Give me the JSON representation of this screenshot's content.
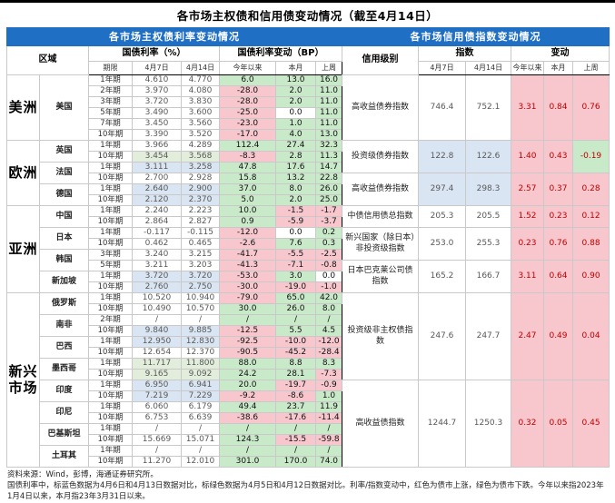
{
  "page_title": "各市场主权债和信用债变动情况（截至4月14日）",
  "colors": {
    "header_blue": "#1F6FC5",
    "up_green": "#C9EAC9",
    "down_pink": "#F7C7CD",
    "hl_blue": "#D9E5F2",
    "hl_green": "#E2EEDB",
    "right_text_red": "#C00000"
  },
  "left_panel": {
    "section_title": "各市场主权债利率变动情况",
    "col_region": "区域",
    "group_rate": "国债利率（%）",
    "group_change": "国债利率变动（BP）",
    "sub_tenor": "期限",
    "sub_date1": "4月7日",
    "sub_date2": "4月14日",
    "sub_ytd": "今年以来",
    "sub_month": "本月",
    "sub_week": "上周"
  },
  "right_panel": {
    "section_title": "各市场信用债指数变动情况",
    "col_level": "信用级别",
    "group_index": "指数",
    "group_change": "变动",
    "sub_date1": "4月7日",
    "sub_date2": "4月14日",
    "sub_ytd": "今年以来",
    "sub_month": "本月",
    "sub_week": "上周"
  },
  "regions": [
    {
      "name": "美洲",
      "countries": [
        {
          "name": "美国",
          "rows": [
            {
              "tenor": "1年期",
              "d1": "4.610",
              "d2": "4.770",
              "ytd": "6.0",
              "ytdC": "g",
              "m": "13.0",
              "mC": "g",
              "w": "16.0",
              "wC": "g",
              "hl": ""
            },
            {
              "tenor": "2年期",
              "d1": "3.970",
              "d2": "4.080",
              "ytd": "-28.0",
              "ytdC": "p",
              "m": "2.0",
              "mC": "g",
              "w": "11.0",
              "wC": "g",
              "hl": ""
            },
            {
              "tenor": "3年期",
              "d1": "3.720",
              "d2": "3.830",
              "ytd": "-28.0",
              "ytdC": "p",
              "m": "2.0",
              "mC": "g",
              "w": "11.0",
              "wC": "g",
              "hl": ""
            },
            {
              "tenor": "5年期",
              "d1": "3.490",
              "d2": "3.600",
              "ytd": "-25.0",
              "ytdC": "p",
              "m": "0.0",
              "mC": "",
              "w": "11.0",
              "wC": "g",
              "hl": ""
            },
            {
              "tenor": "7年期",
              "d1": "3.450",
              "d2": "3.560",
              "ytd": "-23.0",
              "ytdC": "p",
              "m": "1.0",
              "mC": "g",
              "w": "11.0",
              "wC": "g",
              "hl": ""
            },
            {
              "tenor": "10年期",
              "d1": "3.390",
              "d2": "3.520",
              "ytd": "-17.0",
              "ytdC": "p",
              "m": "4.0",
              "mC": "g",
              "w": "13.0",
              "wC": "g",
              "hl": ""
            }
          ]
        }
      ],
      "credit": [
        {
          "label": "高收益债券指数",
          "span": 6,
          "i1": "746.4",
          "i2": "752.1",
          "ytd": "3.31",
          "ytdC": "p",
          "m": "0.84",
          "mC": "p",
          "w": "0.76",
          "wC": "p",
          "hl": ""
        }
      ]
    },
    {
      "name": "欧洲",
      "countries": [
        {
          "name": "英国",
          "rows": [
            {
              "tenor": "1年期",
              "d1": "3.966",
              "d2": "4.289",
              "ytd": "112.4",
              "ytdC": "g",
              "m": "27.4",
              "mC": "g",
              "w": "32.3",
              "wC": "g",
              "hl": ""
            },
            {
              "tenor": "10年期",
              "d1": "3.454",
              "d2": "3.568",
              "ytd": "-8.3",
              "ytdC": "p",
              "m": "2.8",
              "mC": "g",
              "w": "11.3",
              "wC": "g",
              "hl": "green"
            }
          ]
        },
        {
          "name": "法国",
          "rows": [
            {
              "tenor": "1年期",
              "d1": "3.111",
              "d2": "3.258",
              "ytd": "47.8",
              "ytdC": "g",
              "m": "17.6",
              "mC": "g",
              "w": "14.7",
              "wC": "g",
              "hl": "blue"
            },
            {
              "tenor": "10年期",
              "d1": "2.700",
              "d2": "2.928",
              "ytd": "15.8",
              "ytdC": "g",
              "m": "13.2",
              "mC": "g",
              "w": "22.8",
              "wC": "g",
              "hl": ""
            }
          ]
        },
        {
          "name": "德国",
          "rows": [
            {
              "tenor": "1年期",
              "d1": "2.640",
              "d2": "2.900",
              "ytd": "37.0",
              "ytdC": "g",
              "m": "8.0",
              "mC": "g",
              "w": "26.0",
              "wC": "g",
              "hl": "blue"
            },
            {
              "tenor": "10年期",
              "d1": "2.120",
              "d2": "2.370",
              "ytd": "5.0",
              "ytdC": "g",
              "m": "2.0",
              "mC": "g",
              "w": "25.0",
              "wC": "g",
              "hl": "blue"
            }
          ]
        }
      ],
      "credit": [
        {
          "label": "投资级债券指数",
          "span": 3,
          "i1": "122.8",
          "i2": "122.6",
          "ytd": "1.40",
          "ytdC": "p",
          "m": "0.43",
          "mC": "p",
          "w": "-0.19",
          "wC": "g",
          "hl": "blue"
        },
        {
          "label": "高收益债券指数",
          "span": 3,
          "i1": "297.4",
          "i2": "298.3",
          "ytd": "2.57",
          "ytdC": "p",
          "m": "0.37",
          "mC": "p",
          "w": "0.28",
          "wC": "p",
          "hl": "blue"
        }
      ]
    },
    {
      "name": "亚洲",
      "countries": [
        {
          "name": "中国",
          "rows": [
            {
              "tenor": "1年期",
              "d1": "2.240",
              "d2": "2.223",
              "ytd": "10.0",
              "ytdC": "g",
              "m": "-1.5",
              "mC": "p",
              "w": "-1.7",
              "wC": "p",
              "hl": ""
            },
            {
              "tenor": "10年期",
              "d1": "2.864",
              "d2": "2.827",
              "ytd": "0.9",
              "ytdC": "g",
              "m": "-5.9",
              "mC": "p",
              "w": "-3.7",
              "wC": "p",
              "hl": ""
            }
          ]
        },
        {
          "name": "日本",
          "rows": [
            {
              "tenor": "1年期",
              "d1": "-0.117",
              "d2": "-0.115",
              "ytd": "-12.0",
              "ytdC": "p",
              "m": "0.0",
              "mC": "",
              "w": "0.2",
              "wC": "g",
              "hl": ""
            },
            {
              "tenor": "10年期",
              "d1": "0.462",
              "d2": "0.465",
              "ytd": "-2.6",
              "ytdC": "p",
              "m": "7.6",
              "mC": "g",
              "w": "0.3",
              "wC": "g",
              "hl": ""
            }
          ]
        },
        {
          "name": "韩国",
          "rows": [
            {
              "tenor": "3年期",
              "d1": "3.240",
              "d2": "3.215",
              "ytd": "-41.7",
              "ytdC": "p",
              "m": "-5.5",
              "mC": "p",
              "w": "-2.5",
              "wC": "p",
              "hl": ""
            },
            {
              "tenor": "5年期",
              "d1": "3.211",
              "d2": "3.203",
              "ytd": "-41.3",
              "ytdC": "p",
              "m": "-7.1",
              "mC": "p",
              "w": "-0.8",
              "wC": "p",
              "hl": ""
            }
          ]
        },
        {
          "name": "新加坡",
          "rows": [
            {
              "tenor": "1年期",
              "d1": "3.720",
              "d2": "3.720",
              "ytd": "-53.0",
              "ytdC": "p",
              "m": "3.0",
              "mC": "g",
              "w": "0.0",
              "wC": "",
              "hl": "blue"
            },
            {
              "tenor": "10年期",
              "d1": "2.760",
              "d2": "2.750",
              "ytd": "-30.0",
              "ytdC": "p",
              "m": "-19.0",
              "mC": "p",
              "w": "-1.0",
              "wC": "p",
              "hl": "blue"
            }
          ]
        }
      ],
      "credit": [
        {
          "label": "中债信用债总指数",
          "span": 2,
          "i1": "205.3",
          "i2": "205.5",
          "ytd": "1.52",
          "ytdC": "p",
          "m": "0.23",
          "mC": "p",
          "w": "0.12",
          "wC": "p",
          "hl": ""
        },
        {
          "label": "新兴国家（除日本）非投资级指数",
          "span": 3,
          "i1": "253.0",
          "i2": "255.3",
          "ytd": "0.23",
          "ytdC": "p",
          "m": "0.76",
          "mC": "p",
          "w": "0.88",
          "wC": "p",
          "hl": ""
        },
        {
          "label": "日本巴克莱公司债指数",
          "span": 3,
          "i1": "165.2",
          "i2": "166.7",
          "ytd": "3.11",
          "ytdC": "p",
          "m": "0.64",
          "mC": "p",
          "w": "0.90",
          "wC": "p",
          "hl": ""
        }
      ]
    },
    {
      "name": "新兴市场",
      "countries": [
        {
          "name": "俄罗斯",
          "rows": [
            {
              "tenor": "1年期",
              "d1": "10.520",
              "d2": "10.940",
              "ytd": "-79.0",
              "ytdC": "p",
              "m": "65.0",
              "mC": "g",
              "w": "42.0",
              "wC": "g",
              "hl": ""
            },
            {
              "tenor": "10年期",
              "d1": "10.490",
              "d2": "10.570",
              "ytd": "30.0",
              "ytdC": "g",
              "m": "26.0",
              "mC": "g",
              "w": "8.0",
              "wC": "g",
              "hl": ""
            }
          ]
        },
        {
          "name": "南非",
          "rows": [
            {
              "tenor": "2年期",
              "d1": "/",
              "d2": "/",
              "ytd": "/",
              "ytdC": "g",
              "m": "/",
              "mC": "g",
              "w": "/",
              "wC": "g",
              "hl": ""
            },
            {
              "tenor": "10年期",
              "d1": "9.840",
              "d2": "9.885",
              "ytd": "-12.5",
              "ytdC": "p",
              "m": "5.5",
              "mC": "g",
              "w": "4.5",
              "wC": "g",
              "hl": "blue"
            }
          ]
        },
        {
          "name": "巴西",
          "rows": [
            {
              "tenor": "1年期",
              "d1": "12.950",
              "d2": "12.830",
              "ytd": "-92.5",
              "ytdC": "p",
              "m": "-10.0",
              "mC": "p",
              "w": "-12.0",
              "wC": "p",
              "hl": "blue"
            },
            {
              "tenor": "10年期",
              "d1": "12.654",
              "d2": "12.370",
              "ytd": "-90.5",
              "ytdC": "p",
              "m": "-45.2",
              "mC": "p",
              "w": "-28.4",
              "wC": "p",
              "hl": ""
            }
          ]
        },
        {
          "name": "墨西哥",
          "rows": [
            {
              "tenor": "1年期",
              "d1": "11.717",
              "d2": "11.800",
              "ytd": "88.0",
              "ytdC": "g",
              "m": "8.8",
              "mC": "g",
              "w": "8.3",
              "wC": "g",
              "hl": "green"
            },
            {
              "tenor": "10年期",
              "d1": "9.165",
              "d2": "9.092",
              "ytd": "24.2",
              "ytdC": "g",
              "m": "28.1",
              "mC": "g",
              "w": "-7.3",
              "wC": "p",
              "hl": "green"
            }
          ]
        },
        {
          "name": "印度",
          "rows": [
            {
              "tenor": "1年期",
              "d1": "6.950",
              "d2": "6.941",
              "ytd": "20.0",
              "ytdC": "g",
              "m": "-19.7",
              "mC": "p",
              "w": "-0.9",
              "wC": "p",
              "hl": "blue"
            },
            {
              "tenor": "10年期",
              "d1": "7.219",
              "d2": "7.229",
              "ytd": "-9.2",
              "ytdC": "p",
              "m": "-8.6",
              "mC": "p",
              "w": "1.0",
              "wC": "g",
              "hl": "blue"
            }
          ]
        },
        {
          "name": "印尼",
          "rows": [
            {
              "tenor": "1年期",
              "d1": "6.060",
              "d2": "6.179",
              "ytd": "49.4",
              "ytdC": "g",
              "m": "23.7",
              "mC": "g",
              "w": "11.9",
              "wC": "g",
              "hl": ""
            },
            {
              "tenor": "10年期",
              "d1": "6.753",
              "d2": "6.639",
              "ytd": "-38.6",
              "ytdC": "p",
              "m": "-17.6",
              "mC": "p",
              "w": "-11.4",
              "wC": "p",
              "hl": ""
            }
          ]
        },
        {
          "name": "巴基斯坦",
          "rows": [
            {
              "tenor": "1年期",
              "d1": "/",
              "d2": "/",
              "ytd": "/",
              "ytdC": "g",
              "m": "/",
              "mC": "g",
              "w": "/",
              "wC": "g",
              "hl": ""
            },
            {
              "tenor": "10年期",
              "d1": "15.669",
              "d2": "15.071",
              "ytd": "124.3",
              "ytdC": "g",
              "m": "-15.5",
              "mC": "p",
              "w": "-59.8",
              "wC": "p",
              "hl": ""
            }
          ]
        },
        {
          "name": "土耳其",
          "rows": [
            {
              "tenor": "1年期",
              "d1": "/",
              "d2": "/",
              "ytd": "/",
              "ytdC": "g",
              "m": "/",
              "mC": "g",
              "w": "/",
              "wC": "g",
              "hl": ""
            },
            {
              "tenor": "10年期",
              "d1": "11.270",
              "d2": "12.010",
              "ytd": "301.0",
              "ytdC": "g",
              "m": "170.0",
              "mC": "g",
              "w": "74.0",
              "wC": "g",
              "hl": ""
            }
          ]
        }
      ],
      "credit": [
        {
          "label": "投资级非主权债指数",
          "span": 8,
          "i1": "247.6",
          "i2": "247.7",
          "ytd": "2.47",
          "ytdC": "p",
          "m": "0.49",
          "mC": "p",
          "w": "0.04",
          "wC": "p",
          "hl": ""
        },
        {
          "label": "高收益债指数",
          "span": 8,
          "i1": "1244.7",
          "i2": "1250.3",
          "ytd": "0.32",
          "ytdC": "p",
          "m": "0.05",
          "mC": "p",
          "w": "0.45",
          "wC": "p",
          "hl": ""
        }
      ]
    }
  ],
  "footnotes": {
    "source": "资料来源：Wind，彭博，海通证券研究所。",
    "note": "国债利率中，标蓝色数据为4月6日和4月13日数据对比，标绿色数据为4月5日和4月12日数据对比。利率/指数变动中，红色为债市上涨，绿色为债市下跌。今年以来指2023年1月4日以来，本月指23年3月31日以来。"
  }
}
